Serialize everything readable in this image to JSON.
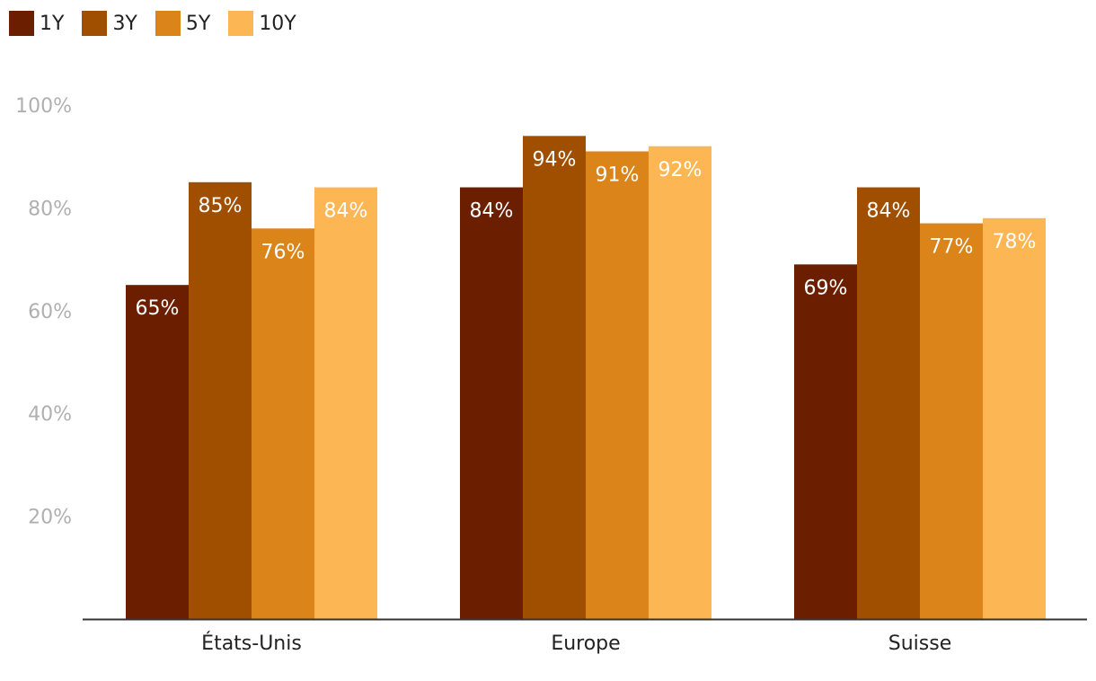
{
  "chart_data": {
    "type": "bar",
    "categories": [
      "États-Unis",
      "Europe",
      "Suisse"
    ],
    "series": [
      {
        "name": "1Y",
        "color": "#6b1f00",
        "values": [
          65,
          84,
          69
        ]
      },
      {
        "name": "3Y",
        "color": "#a04f00",
        "values": [
          85,
          94,
          84
        ]
      },
      {
        "name": "5Y",
        "color": "#db841a",
        "values": [
          76,
          91,
          77
        ]
      },
      {
        "name": "10Y",
        "color": "#fdb654",
        "values": [
          84,
          92,
          78
        ]
      }
    ],
    "value_labels": [
      [
        "65%",
        "84%",
        "69%"
      ],
      [
        "85%",
        "94%",
        "84%"
      ],
      [
        "76%",
        "91%",
        "77%"
      ],
      [
        "84%",
        "92%",
        "78%"
      ]
    ],
    "y_ticks": [
      20,
      40,
      60,
      80,
      100
    ],
    "y_tick_labels": [
      "20%",
      "40%",
      "60%",
      "80%",
      "100%"
    ],
    "ylim": [
      0,
      100
    ],
    "title": "",
    "xlabel": "",
    "ylabel": "",
    "legend_position": "top-left",
    "grid": false
  }
}
